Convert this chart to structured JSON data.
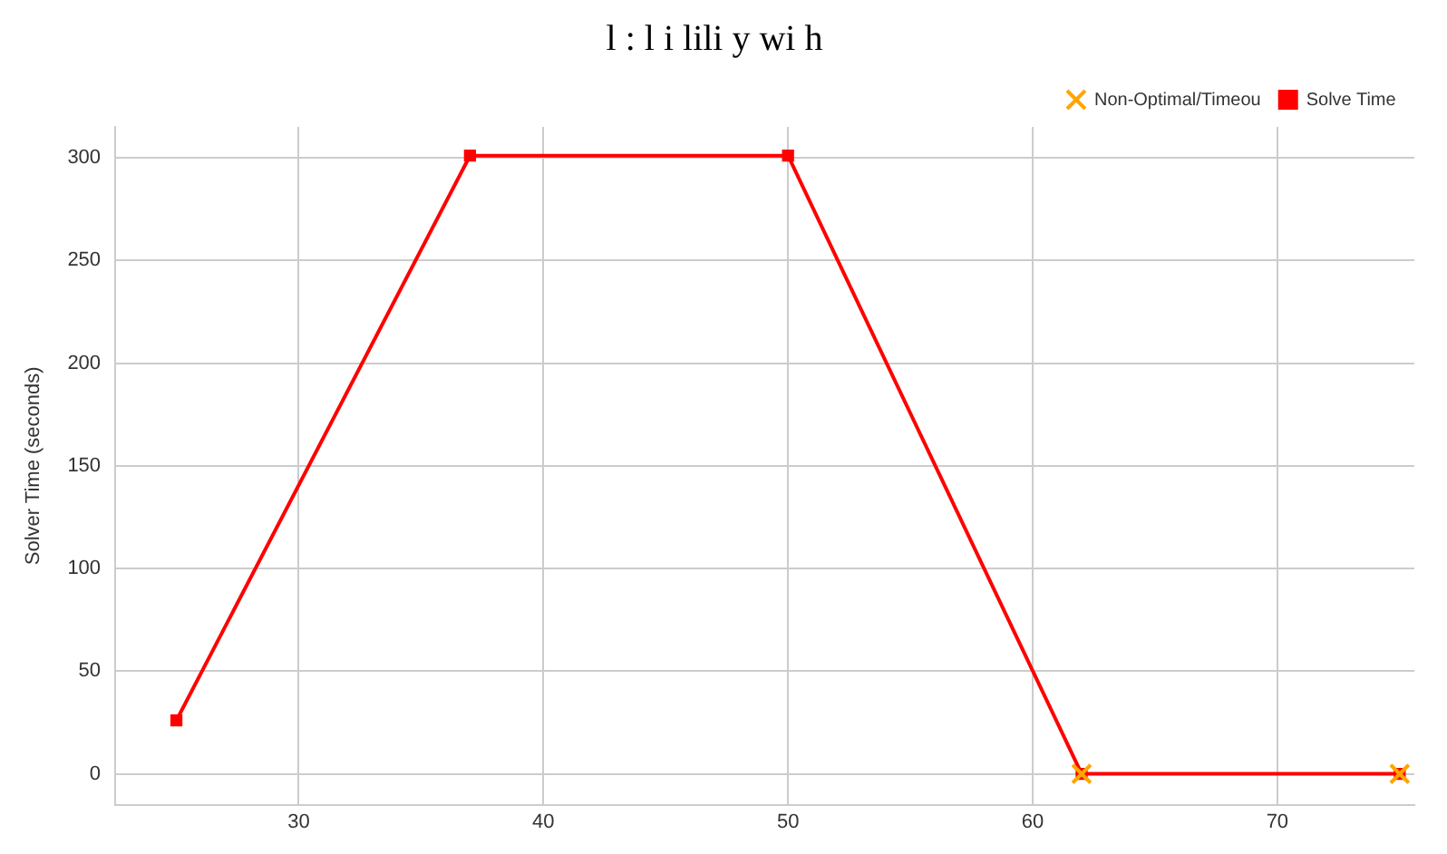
{
  "chart_data": {
    "type": "line",
    "title": "l : l i lili y wi h",
    "ylabel": "Solver Time (seconds)",
    "x": [
      25,
      37,
      50,
      62,
      75
    ],
    "series": [
      {
        "name": "Solve Time",
        "color": "#ff0000",
        "marker": "square",
        "values": [
          26,
          301,
          301,
          0,
          0
        ]
      },
      {
        "name": "Non-Optimal/Timeou",
        "type": "scatter",
        "color": "#ffa500",
        "marker": "cross",
        "x": [
          62,
          75
        ],
        "values": [
          0,
          0
        ]
      }
    ],
    "xlim": [
      22.5,
      75.6
    ],
    "xticks": [
      30,
      40,
      50,
      60,
      70
    ],
    "ylim": [
      -15,
      315
    ],
    "yticks": [
      0,
      50,
      100,
      150,
      200,
      250,
      300
    ],
    "grid": true,
    "legend": "top right"
  }
}
